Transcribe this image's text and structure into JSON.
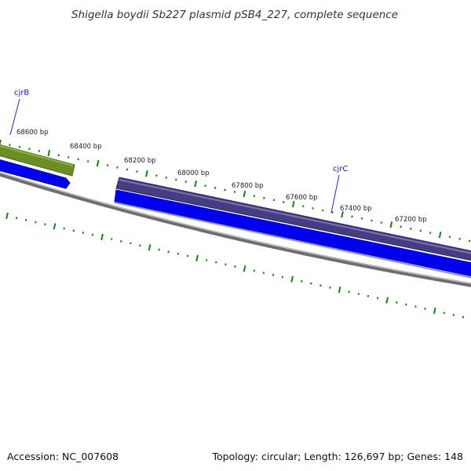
{
  "title": "Shigella boydii Sb227 plasmid pSB4_227, complete sequence",
  "footer": {
    "accession": "Accession: NC_007608",
    "topology": "Topology: circular; Length: 126,697 bp; Genes: 148"
  },
  "ruler_labels": [
    "68600 bp",
    "68400 bp",
    "68200 bp",
    "68000 bp",
    "67800 bp",
    "67600 bp",
    "67400 bp",
    "67200 bp"
  ],
  "genes": [
    {
      "name": "cjrB",
      "strand": "forward"
    },
    {
      "name": "cjrC",
      "strand": "forward"
    }
  ],
  "colors": {
    "tick": "#1e7a1e",
    "backbone": "#7c7c7c",
    "cds": "#0000ee",
    "gene_cjrB": "#6b8e23",
    "gene_cjrC": "#463c82",
    "label": "#1a1aa0"
  }
}
